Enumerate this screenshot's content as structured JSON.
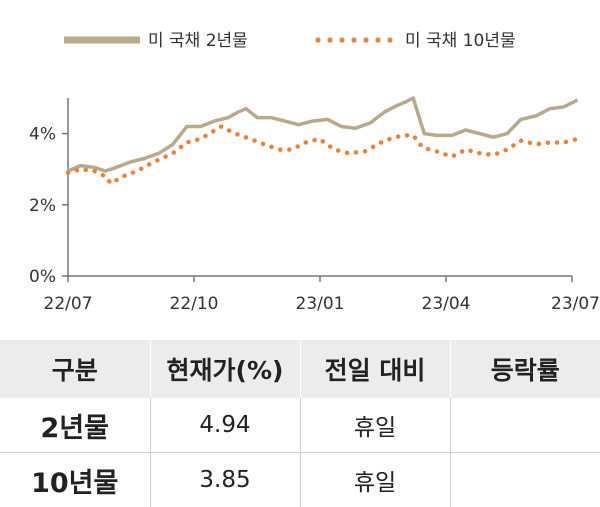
{
  "chart_data": {
    "type": "line",
    "title": "",
    "xlabel": "",
    "ylabel": "",
    "x_ticks": [
      "22/07",
      "22/10",
      "23/01",
      "23/04",
      "23/07"
    ],
    "y_ticks": [
      "0%",
      "2%",
      "4%"
    ],
    "ylim": [
      0,
      5
    ],
    "grid": false,
    "legend_position": "top",
    "series": [
      {
        "name": "미 국채 2년물",
        "style": "solid",
        "color": "#b8a98a",
        "points": [
          [
            "2022-07-01",
            2.95
          ],
          [
            "2022-07-10",
            3.1
          ],
          [
            "2022-07-20",
            3.05
          ],
          [
            "2022-07-28",
            2.95
          ],
          [
            "2022-08-05",
            3.05
          ],
          [
            "2022-08-15",
            3.2
          ],
          [
            "2022-08-25",
            3.3
          ],
          [
            "2022-09-05",
            3.45
          ],
          [
            "2022-09-15",
            3.7
          ],
          [
            "2022-09-25",
            4.2
          ],
          [
            "2022-10-05",
            4.2
          ],
          [
            "2022-10-15",
            4.35
          ],
          [
            "2022-10-25",
            4.45
          ],
          [
            "2022-11-01",
            4.6
          ],
          [
            "2022-11-07",
            4.7
          ],
          [
            "2022-11-15",
            4.45
          ],
          [
            "2022-11-25",
            4.45
          ],
          [
            "2022-12-05",
            4.35
          ],
          [
            "2022-12-15",
            4.25
          ],
          [
            "2022-12-25",
            4.35
          ],
          [
            "2023-01-05",
            4.4
          ],
          [
            "2023-01-15",
            4.2
          ],
          [
            "2023-01-25",
            4.15
          ],
          [
            "2023-02-05",
            4.3
          ],
          [
            "2023-02-15",
            4.6
          ],
          [
            "2023-02-25",
            4.8
          ],
          [
            "2023-03-03",
            4.9
          ],
          [
            "2023-03-08",
            5.0
          ],
          [
            "2023-03-12",
            4.5
          ],
          [
            "2023-03-16",
            4.0
          ],
          [
            "2023-03-25",
            3.95
          ],
          [
            "2023-04-05",
            3.95
          ],
          [
            "2023-04-15",
            4.1
          ],
          [
            "2023-04-25",
            4.0
          ],
          [
            "2023-05-05",
            3.9
          ],
          [
            "2023-05-15",
            4.0
          ],
          [
            "2023-05-25",
            4.4
          ],
          [
            "2023-06-05",
            4.5
          ],
          [
            "2023-06-15",
            4.7
          ],
          [
            "2023-06-25",
            4.75
          ],
          [
            "2023-07-05",
            4.94
          ]
        ]
      },
      {
        "name": "미 국채 10년물",
        "style": "dotted",
        "color": "#e8843a",
        "points": [
          [
            "2022-07-01",
            2.9
          ],
          [
            "2022-07-10",
            3.0
          ],
          [
            "2022-07-20",
            2.95
          ],
          [
            "2022-07-28",
            2.8
          ],
          [
            "2022-08-01",
            2.6
          ],
          [
            "2022-08-10",
            2.8
          ],
          [
            "2022-08-20",
            2.95
          ],
          [
            "2022-09-01",
            3.2
          ],
          [
            "2022-09-15",
            3.45
          ],
          [
            "2022-09-25",
            3.75
          ],
          [
            "2022-10-05",
            3.85
          ],
          [
            "2022-10-20",
            4.2
          ],
          [
            "2022-10-30",
            4.0
          ],
          [
            "2022-11-10",
            3.85
          ],
          [
            "2022-11-20",
            3.7
          ],
          [
            "2022-12-01",
            3.55
          ],
          [
            "2022-12-10",
            3.55
          ],
          [
            "2022-12-20",
            3.75
          ],
          [
            "2022-12-30",
            3.85
          ],
          [
            "2023-01-10",
            3.55
          ],
          [
            "2023-01-20",
            3.45
          ],
          [
            "2023-02-01",
            3.5
          ],
          [
            "2023-02-15",
            3.8
          ],
          [
            "2023-02-28",
            3.95
          ],
          [
            "2023-03-08",
            3.95
          ],
          [
            "2023-03-15",
            3.6
          ],
          [
            "2023-03-25",
            3.5
          ],
          [
            "2023-04-05",
            3.35
          ],
          [
            "2023-04-15",
            3.55
          ],
          [
            "2023-04-25",
            3.45
          ],
          [
            "2023-05-05",
            3.4
          ],
          [
            "2023-05-15",
            3.55
          ],
          [
            "2023-05-25",
            3.8
          ],
          [
            "2023-06-05",
            3.7
          ],
          [
            "2023-06-15",
            3.75
          ],
          [
            "2023-06-25",
            3.75
          ],
          [
            "2023-07-05",
            3.85
          ]
        ]
      }
    ]
  },
  "table": {
    "headers": [
      "구분",
      "현재가(%)",
      "전일 대비",
      "등락률"
    ],
    "rows": [
      {
        "label": "2년물",
        "price": "4.94",
        "change": "휴일",
        "rate": ""
      },
      {
        "label": "10년물",
        "price": "3.85",
        "change": "휴일",
        "rate": ""
      }
    ]
  }
}
